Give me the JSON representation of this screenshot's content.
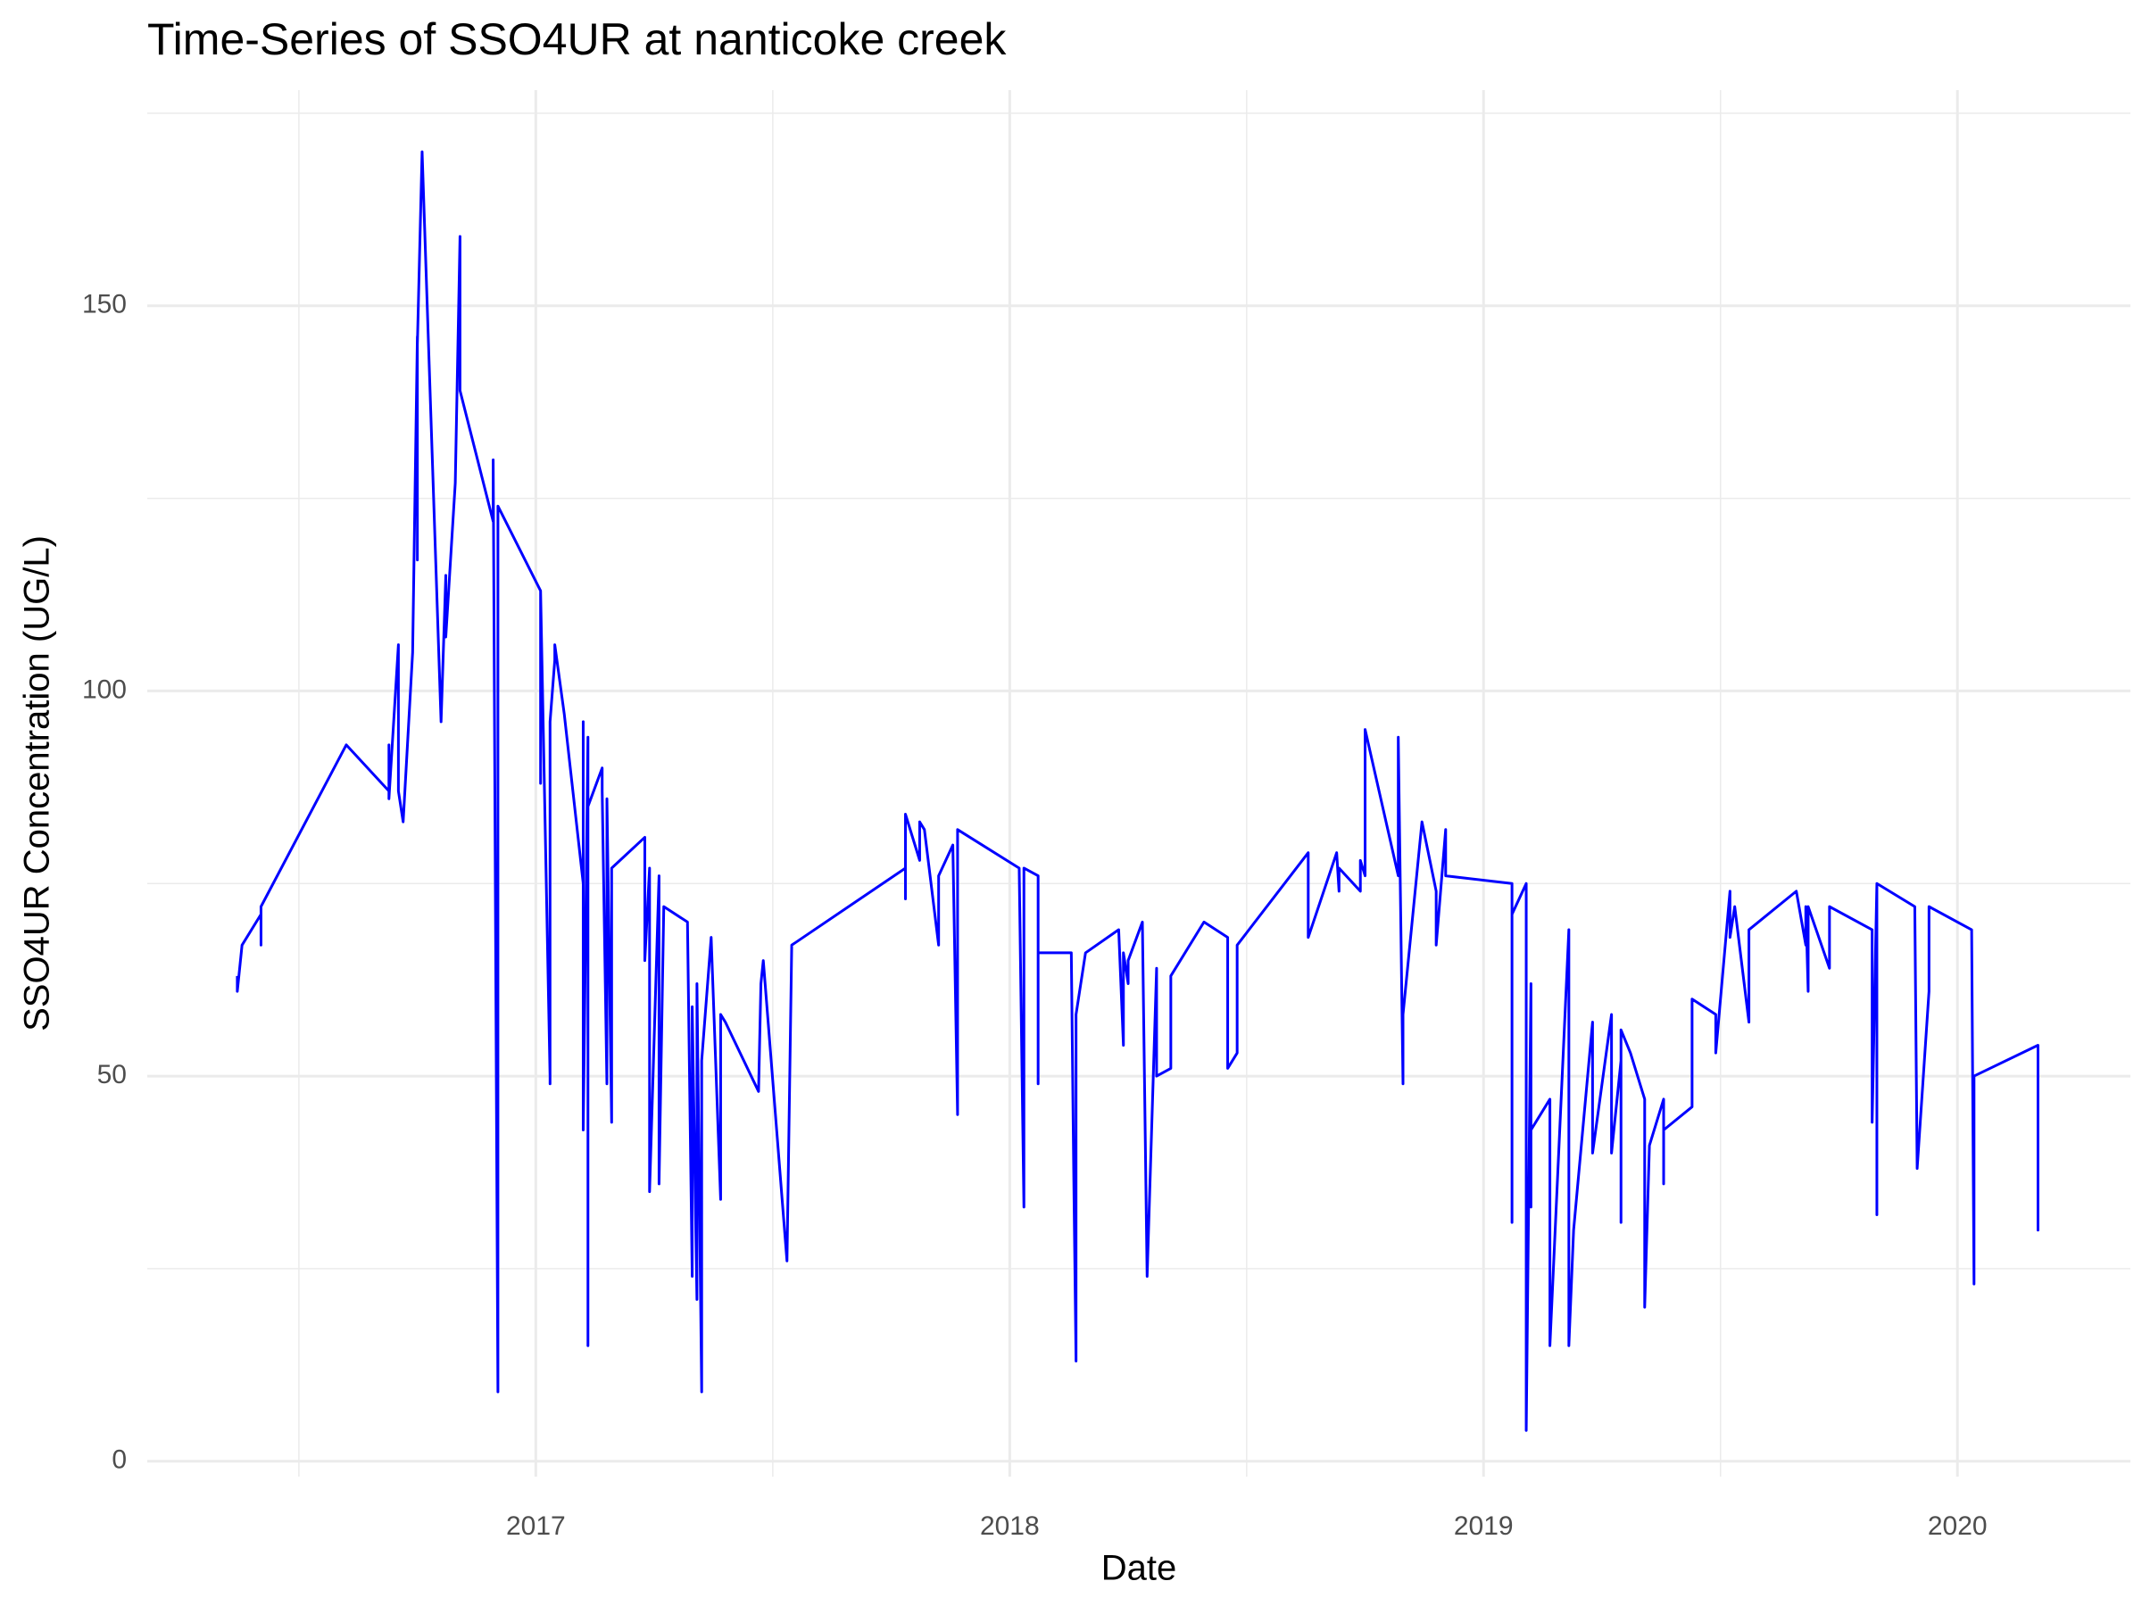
{
  "chart_data": {
    "type": "line",
    "title": "Time-Series of SSO4UR at nanticoke creek",
    "x_label": "Date",
    "y_label": "SSO4UR Concentration (UG/L)",
    "color": "#0000ff",
    "grid": true,
    "xlim": [
      2016.18,
      2020.365
    ],
    "ylim": [
      -2,
      178
    ],
    "xticks": [
      2017,
      2018,
      2019,
      2020
    ],
    "yticks": [
      0,
      50,
      100,
      150
    ],
    "xminorticks": [
      2016.5,
      2017.5,
      2018.5,
      2019.5
    ],
    "yminorticks": [
      25,
      75,
      125,
      175
    ],
    "x": [
      2016.37,
      2016.37,
      2016.38,
      2016.42,
      2016.42,
      2016.42,
      2016.6,
      2016.69,
      2016.69,
      2016.69,
      2016.71,
      2016.71,
      2016.72,
      2016.74,
      2016.75,
      2016.75,
      2016.75,
      2016.76,
      2016.8,
      2016.81,
      2016.81,
      2016.815,
      2016.83,
      2016.84,
      2016.84,
      2016.91,
      2016.91,
      2016.92,
      2016.92,
      2017.01,
      2017.01,
      2017.01,
      2017.03,
      2017.03,
      2017.03,
      2017.04,
      2017.04,
      2017.06,
      2017.1,
      2017.1,
      2017.1,
      2017.11,
      2017.11,
      2017.11,
      2017.14,
      2017.14,
      2017.15,
      2017.15,
      2017.16,
      2017.16,
      2017.23,
      2017.23,
      2017.24,
      2017.24,
      2017.26,
      2017.26,
      2017.27,
      2017.32,
      2017.33,
      2017.33,
      2017.34,
      2017.34,
      2017.35,
      2017.35,
      2017.37,
      2017.39,
      2017.39,
      2017.4,
      2017.47,
      2017.475,
      2017.48,
      2017.53,
      2017.54,
      2017.78,
      2017.78,
      2017.78,
      2017.81,
      2017.81,
      2017.82,
      2017.85,
      2017.85,
      2017.88,
      2017.89,
      2017.89,
      2018.02,
      2018.03,
      2018.03,
      2018.06,
      2018.06,
      2018.06,
      2018.13,
      2018.135,
      2018.14,
      2018.14,
      2018.16,
      2018.23,
      2018.24,
      2018.24,
      2018.25,
      2018.25,
      2018.28,
      2018.29,
      2018.31,
      2018.31,
      2018.34,
      2018.34,
      2018.41,
      2018.46,
      2018.46,
      2018.48,
      2018.48,
      2018.63,
      2018.63,
      2018.69,
      2018.695,
      2018.695,
      2018.74,
      2018.74,
      2018.75,
      2018.75,
      2018.82,
      2018.82,
      2018.83,
      2018.83,
      2018.87,
      2018.9,
      2018.9,
      2018.92,
      2018.92,
      2019.06,
      2019.06,
      2019.06,
      2019.09,
      2019.09,
      2019.1,
      2019.1,
      2019.1,
      2019.14,
      2019.14,
      2019.18,
      2019.18,
      2019.19,
      2019.23,
      2019.23,
      2019.27,
      2019.27,
      2019.29,
      2019.29,
      2019.29,
      2019.31,
      2019.34,
      2019.34,
      2019.35,
      2019.38,
      2019.38,
      2019.38,
      2019.44,
      2019.44,
      2019.49,
      2019.49,
      2019.52,
      2019.52,
      2019.53,
      2019.56,
      2019.56,
      2019.66,
      2019.68,
      2019.68,
      2019.685,
      2019.685,
      2019.73,
      2019.73,
      2019.82,
      2019.82,
      2019.83,
      2019.83,
      2019.83,
      2019.91,
      2019.915,
      2019.94,
      2019.94,
      2020.03,
      2020.035,
      2020.035,
      2020.17,
      2020.17,
      2020.17
    ],
    "values": [
      63,
      61,
      67,
      71,
      67,
      72,
      93,
      87,
      93,
      86,
      106,
      87,
      83,
      105,
      146,
      117,
      145,
      170,
      96,
      115,
      107,
      112,
      127,
      159,
      139,
      122,
      130,
      9,
      124,
      113,
      88,
      113,
      50,
      49,
      96,
      104,
      106,
      97,
      75,
      96,
      43,
      94,
      15,
      85,
      90,
      87,
      49,
      86,
      44,
      77,
      81,
      65,
      77,
      35,
      76,
      36,
      72,
      70,
      24,
      59,
      21,
      62,
      9,
      52,
      68,
      34,
      58,
      57,
      48,
      62,
      65,
      26,
      67,
      77,
      73,
      84,
      78,
      83,
      82,
      67,
      76,
      80,
      45,
      82,
      77,
      33,
      77,
      76,
      49,
      66,
      66,
      38,
      13,
      58,
      66,
      69,
      54,
      66,
      62,
      65,
      70,
      24,
      64,
      50,
      51,
      63,
      70,
      68,
      51,
      53,
      67,
      79,
      68,
      79,
      74,
      77,
      74,
      78,
      76,
      95,
      76,
      94,
      49,
      58,
      83,
      74,
      67,
      82,
      76,
      75,
      31,
      71,
      75,
      4,
      62,
      33,
      43,
      47,
      15,
      69,
      15,
      30,
      57,
      40,
      58,
      40,
      52,
      31,
      56,
      53,
      47,
      20,
      41,
      47,
      36,
      43,
      46,
      60,
      58,
      53,
      74,
      68,
      72,
      57,
      69,
      74,
      67,
      72,
      61,
      72,
      64,
      72,
      69,
      44,
      75,
      32,
      75,
      72,
      38,
      61,
      72,
      69,
      23,
      50,
      54,
      30,
      44
    ]
  }
}
